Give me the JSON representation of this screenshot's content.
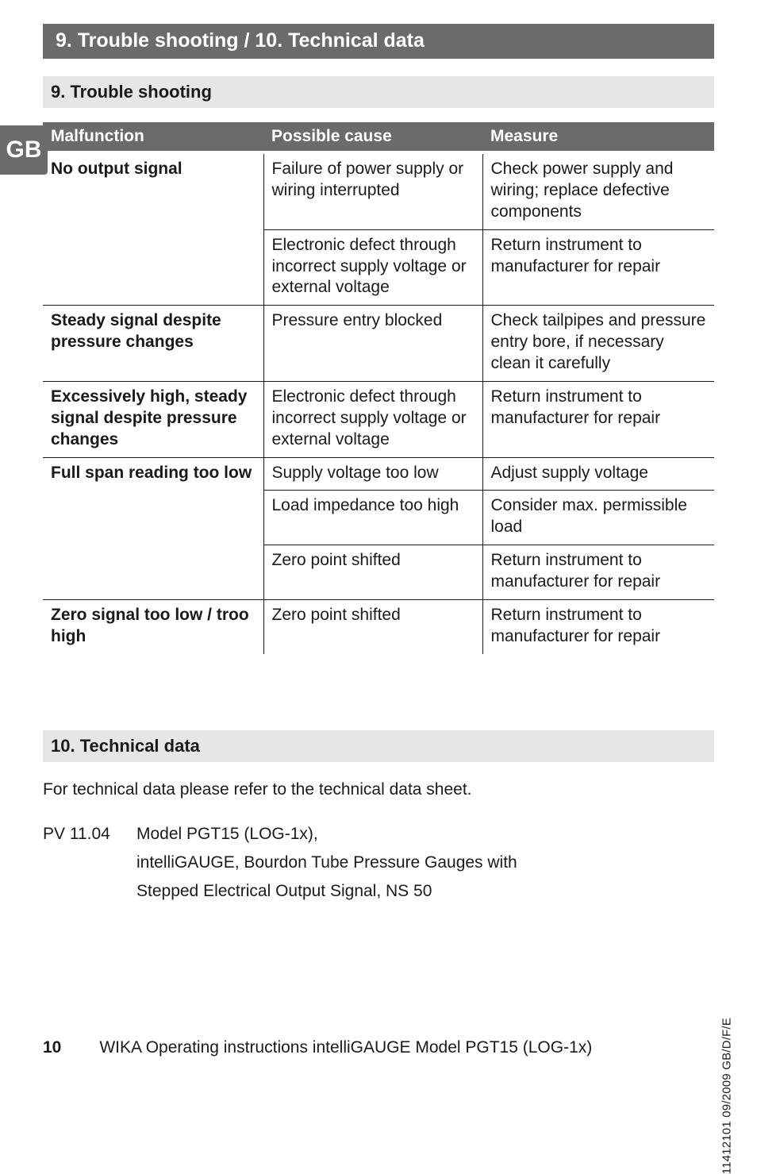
{
  "banner": "9. Trouble shooting / 10. Technical data",
  "langTab": "GB",
  "troubleHeading": "9. Trouble shooting",
  "table": {
    "headers": [
      "Malfunction",
      "Possible cause",
      "Measure"
    ],
    "rows": [
      {
        "c0": "No output signal",
        "c1": "Failure of power supply or wiring interrupted",
        "c2": "Check power supply and wiring; replace defective components",
        "rowspan0": 2
      },
      {
        "c0": null,
        "c1": "Electronic defect through incorrect supply voltage or external voltage",
        "c2": "Return instrument to manufacturer for repair"
      },
      {
        "c0": "Steady signal despite pressure changes",
        "c1": "Pressure entry blocked",
        "c2": "Check tailpipes and pressure entry bore, if necessary clean it carefully"
      },
      {
        "c0": "Excessively high, steady signal despite pressure changes",
        "c1": "Electronic defect through incorrect supply voltage or external voltage",
        "c2": "Return instrument to manufacturer for repair"
      },
      {
        "c0": "Full span reading too low",
        "c1": "Supply voltage too low",
        "c2": "Adjust supply voltage",
        "rowspan0": 3
      },
      {
        "c0": null,
        "c1": "Load impedance too high",
        "c2": "Consider max. permissible load"
      },
      {
        "c0": null,
        "c1": "Zero point shifted",
        "c2": "Return instrument to manufacturer for repair"
      },
      {
        "c0": "Zero signal too low / troo high",
        "c1": "Zero point shifted",
        "c2": "Return instrument to manufacturer for repair"
      }
    ]
  },
  "techHeading": "10. Technical data",
  "techIntro": "For technical data please refer to the technical data sheet.",
  "pvLabel": "PV 11.04",
  "pvLines": [
    "Model PGT15 (LOG-1x),",
    "intelliGAUGE, Bourdon Tube Pressure Gauges with",
    "Stepped Electrical Output Signal, NS 50"
  ],
  "sideVertical": "11412101 09/2009 GB/D/F/E",
  "footer": {
    "pageNum": "10",
    "text": "WIKA Operating instructions intelliGAUGE Model PGT15 (LOG-1x)"
  }
}
